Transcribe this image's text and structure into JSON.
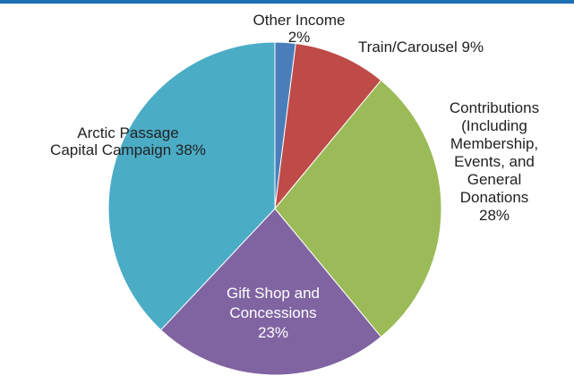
{
  "colors": {
    "top_rule": "#1f6fb5",
    "slice_edge": "#ffffff"
  },
  "chart_data": {
    "type": "pie",
    "start_angle_deg": 0,
    "direction": "clockwise",
    "slices": [
      {
        "label_lines": [
          "Other Income",
          "2%"
        ],
        "value": 2,
        "color": "#4a7ebb"
      },
      {
        "label_lines": [
          "Train/Carousel 9%"
        ],
        "value": 9,
        "color": "#be4b48"
      },
      {
        "label_lines": [
          "Contributions",
          "(Including",
          "Membership,",
          "Events, and",
          "General",
          "Donations",
          "28%"
        ],
        "value": 28,
        "color": "#9bbb59"
      },
      {
        "label_lines": [
          "Gift Shop and",
          "Concessions",
          "23%"
        ],
        "value": 23,
        "color": "#8064a2"
      },
      {
        "label_lines": [
          "Arctic Passage",
          "Capital Campaign 38%"
        ],
        "value": 38,
        "color": "#4bacc6"
      }
    ]
  }
}
